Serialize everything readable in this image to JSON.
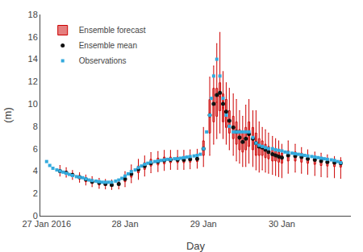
{
  "chart_data": {
    "type": "box",
    "xlabel": "Day",
    "ylabel": "(m)",
    "xlim": [
      -0.08,
      3.88
    ],
    "xticks": [
      {
        "value": 0,
        "label": "27 Jan 2016"
      },
      {
        "value": 1,
        "label": "28 Jan"
      },
      {
        "value": 2,
        "label": "29 Jan"
      },
      {
        "value": 3,
        "label": "30 Jan"
      }
    ],
    "ylim": [
      0,
      18
    ],
    "yticks": [
      0,
      2,
      4,
      6,
      8,
      10,
      12,
      14,
      16,
      18
    ],
    "grid": false,
    "legend": "upper left",
    "series": [
      {
        "name": "Ensemble forecast",
        "type": "box",
        "color": "#cc0000",
        "x": [
          0.17,
          0.25,
          0.33,
          0.42,
          0.5,
          0.58,
          0.67,
          0.75,
          0.83,
          0.92,
          1.0,
          1.08,
          1.17,
          1.25,
          1.33,
          1.42,
          1.5,
          1.58,
          1.67,
          1.75,
          1.83,
          1.92,
          2.0,
          2.08,
          2.13,
          2.17,
          2.21,
          2.25,
          2.29,
          2.33,
          2.38,
          2.42,
          2.46,
          2.5,
          2.54,
          2.58,
          2.63,
          2.67,
          2.71,
          2.75,
          2.79,
          2.83,
          2.88,
          2.92,
          2.96,
          3.0,
          3.08,
          3.17,
          3.25,
          3.33,
          3.42,
          3.5,
          3.58,
          3.67,
          3.75
        ],
        "q1": [
          3.9,
          3.75,
          3.55,
          3.3,
          3.05,
          2.9,
          2.75,
          2.7,
          2.65,
          2.7,
          3.05,
          3.45,
          3.85,
          4.15,
          4.45,
          4.55,
          4.65,
          4.75,
          4.75,
          4.75,
          4.8,
          4.85,
          5.4,
          7.4,
          8.4,
          8.9,
          9.4,
          8.4,
          7.9,
          7.4,
          6.9,
          6.4,
          5.9,
          5.7,
          5.9,
          6.2,
          5.9,
          5.4,
          5.4,
          5.4,
          5.2,
          5.1,
          4.9,
          4.9,
          4.8,
          4.7,
          4.9,
          4.9,
          4.8,
          4.7,
          4.6,
          4.5,
          4.45,
          4.4,
          4.35
        ],
        "median": [
          4.0,
          3.9,
          3.7,
          3.45,
          3.25,
          3.1,
          2.95,
          2.85,
          2.8,
          2.85,
          3.3,
          3.75,
          4.15,
          4.45,
          4.75,
          4.85,
          4.95,
          5.0,
          5.0,
          5.0,
          5.05,
          5.1,
          6.05,
          8.9,
          9.9,
          10.15,
          10.65,
          9.65,
          9.15,
          8.4,
          7.9,
          7.4,
          6.8,
          6.55,
          6.9,
          7.3,
          6.9,
          6.4,
          6.15,
          6.05,
          5.8,
          5.65,
          5.45,
          5.4,
          5.25,
          5.15,
          5.35,
          5.3,
          5.2,
          5.05,
          4.95,
          4.85,
          4.775,
          4.7,
          4.65
        ],
        "q3": [
          4.1,
          4.0,
          3.8,
          3.6,
          3.4,
          3.25,
          3.1,
          3.0,
          2.95,
          3.0,
          3.55,
          4.05,
          4.45,
          4.75,
          5.05,
          5.15,
          5.25,
          5.25,
          5.25,
          5.25,
          5.3,
          5.35,
          6.7,
          10.4,
          11.4,
          11.4,
          11.9,
          10.9,
          10.4,
          9.4,
          8.9,
          8.4,
          7.7,
          7.4,
          7.9,
          8.4,
          7.9,
          7.4,
          6.9,
          6.7,
          6.4,
          6.2,
          6.0,
          5.9,
          5.7,
          5.6,
          5.8,
          5.7,
          5.6,
          5.4,
          5.3,
          5.2,
          5.1,
          5.0,
          4.95
        ],
        "whisker_low": [
          3.55,
          3.45,
          3.25,
          3.0,
          2.75,
          2.6,
          2.45,
          2.4,
          2.35,
          2.4,
          2.6,
          2.95,
          3.25,
          3.55,
          3.85,
          3.95,
          4.05,
          4.15,
          4.15,
          4.15,
          4.2,
          4.25,
          4.4,
          5.4,
          6.4,
          6.9,
          7.4,
          6.9,
          6.4,
          5.9,
          5.4,
          4.9,
          4.7,
          4.4,
          4.4,
          4.7,
          4.4,
          4.1,
          3.9,
          4.1,
          3.9,
          3.8,
          3.7,
          3.6,
          3.5,
          3.4,
          3.8,
          3.9,
          3.8,
          3.7,
          3.6,
          3.5,
          3.45,
          3.4,
          3.35
        ],
        "whisker_high": [
          4.5,
          4.3,
          4.05,
          3.85,
          3.65,
          3.5,
          3.35,
          3.25,
          3.2,
          3.25,
          3.95,
          4.55,
          5.05,
          5.35,
          5.65,
          5.75,
          5.85,
          5.85,
          5.85,
          5.85,
          5.9,
          5.95,
          7.9,
          12.4,
          13.4,
          15.4,
          16.4,
          12.9,
          11.9,
          11.4,
          10.9,
          10.4,
          9.4,
          8.9,
          9.9,
          10.4,
          9.4,
          9.4,
          8.4,
          7.9,
          7.7,
          7.4,
          7.1,
          6.9,
          6.7,
          6.4,
          6.7,
          6.4,
          6.1,
          5.9,
          5.7,
          5.6,
          5.45,
          5.3,
          5.2
        ]
      },
      {
        "name": "Ensemble mean",
        "type": "scatter",
        "marker": "circle",
        "color": "#111111",
        "x": [
          0.17,
          0.25,
          0.33,
          0.42,
          0.5,
          0.58,
          0.67,
          0.75,
          0.83,
          0.92,
          1.0,
          1.08,
          1.17,
          1.25,
          1.33,
          1.42,
          1.5,
          1.58,
          1.67,
          1.75,
          1.83,
          1.92,
          2.0,
          2.08,
          2.13,
          2.17,
          2.21,
          2.25,
          2.29,
          2.33,
          2.38,
          2.42,
          2.46,
          2.5,
          2.54,
          2.58,
          2.63,
          2.67,
          2.71,
          2.75,
          2.79,
          2.83,
          2.88,
          2.92,
          2.96,
          3.0,
          3.08,
          3.17,
          3.25,
          3.33,
          3.42,
          3.5,
          3.58,
          3.67,
          3.75
        ],
        "values": [
          4.0,
          3.85,
          3.65,
          3.45,
          3.25,
          3.05,
          2.95,
          2.85,
          2.75,
          2.85,
          3.3,
          3.75,
          4.15,
          4.45,
          4.7,
          4.85,
          4.95,
          5.0,
          5.0,
          5.0,
          5.05,
          5.1,
          6.0,
          9.0,
          10.0,
          10.8,
          11.0,
          10.0,
          9.3,
          8.5,
          7.9,
          7.5,
          7.0,
          6.6,
          6.9,
          7.3,
          6.9,
          6.5,
          6.2,
          6.1,
          5.9,
          5.7,
          5.5,
          5.4,
          5.3,
          5.2,
          5.4,
          5.35,
          5.25,
          5.1,
          5.0,
          4.9,
          4.8,
          4.75,
          4.7
        ]
      },
      {
        "name": "Observations",
        "type": "scatter",
        "marker": "square",
        "color": "#33aadd",
        "x": [
          0.0,
          0.04,
          0.08,
          0.13,
          0.17,
          0.21,
          0.25,
          0.29,
          0.33,
          0.38,
          0.42,
          0.46,
          0.5,
          0.54,
          0.58,
          0.63,
          0.67,
          0.71,
          0.75,
          0.79,
          0.83,
          0.88,
          0.92,
          0.96,
          1.0,
          1.04,
          1.08,
          1.13,
          1.17,
          1.21,
          1.25,
          1.29,
          1.33,
          1.38,
          1.42,
          1.46,
          1.5,
          1.54,
          1.58,
          1.63,
          1.67,
          1.71,
          1.75,
          1.79,
          1.83,
          1.88,
          1.92,
          1.96,
          2.0,
          2.04,
          2.08,
          2.1,
          2.13,
          2.17,
          2.21,
          2.25,
          2.29,
          2.33,
          2.38,
          2.42,
          2.46,
          2.5,
          2.54,
          2.58,
          2.63,
          2.67,
          2.71,
          2.75,
          2.79,
          2.83,
          2.88,
          2.92,
          2.96,
          3.0,
          3.04,
          3.08,
          3.13,
          3.17,
          3.21,
          3.25,
          3.29,
          3.33,
          3.38,
          3.42,
          3.46,
          3.5,
          3.54,
          3.58,
          3.63,
          3.67,
          3.71,
          3.75
        ],
        "values": [
          4.85,
          4.5,
          4.25,
          4.1,
          4.0,
          3.9,
          3.8,
          3.7,
          3.6,
          3.5,
          3.45,
          3.4,
          3.3,
          3.2,
          3.15,
          3.1,
          3.05,
          3.0,
          3.0,
          3.0,
          3.0,
          3.1,
          3.2,
          3.35,
          3.55,
          3.75,
          3.95,
          4.1,
          4.3,
          4.45,
          4.6,
          4.7,
          4.8,
          4.85,
          4.9,
          4.95,
          5.0,
          5.05,
          5.05,
          5.1,
          5.1,
          5.15,
          5.2,
          5.25,
          5.3,
          5.35,
          5.4,
          5.5,
          6.0,
          7.5,
          9.0,
          10.5,
          12.5,
          14.0,
          12.5,
          10.5,
          9.0,
          8.0,
          7.5,
          7.5,
          7.5,
          7.5,
          7.5,
          7.5,
          7.0,
          6.5,
          6.3,
          6.2,
          6.1,
          6.0,
          6.0,
          5.9,
          5.85,
          5.8,
          5.7,
          5.65,
          5.6,
          5.55,
          5.5,
          5.45,
          5.4,
          5.35,
          5.3,
          5.25,
          5.2,
          5.15,
          5.1,
          5.05,
          5.0,
          4.95,
          4.85,
          4.75
        ]
      }
    ]
  }
}
